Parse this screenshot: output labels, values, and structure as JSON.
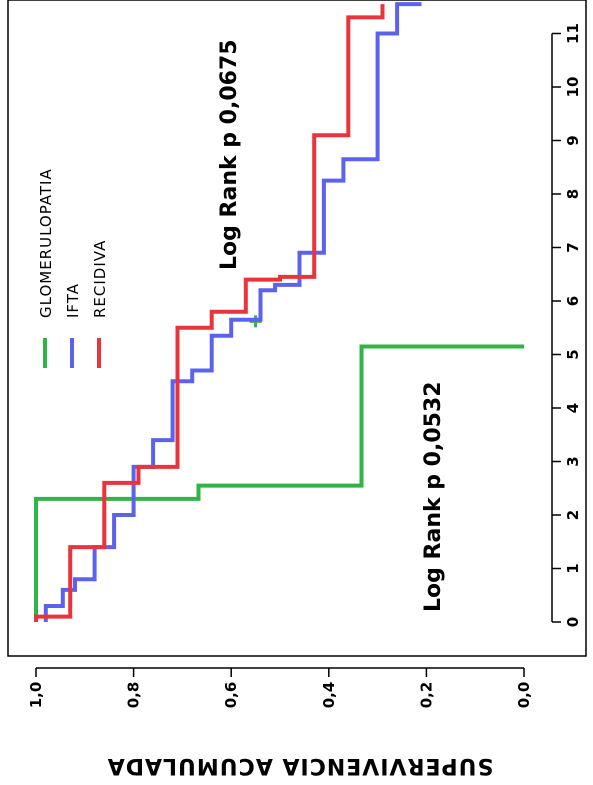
{
  "chart_data": {
    "type": "line",
    "step": true,
    "orientation": "rotated-90",
    "ylabel": "SUPERVIVENCIA ACUMULADA",
    "xlabel": "",
    "xlim": [
      -0.5,
      11.5
    ],
    "ylim": [
      -0.05,
      1.05
    ],
    "x_ticks": [
      "0",
      "1",
      "2",
      "3",
      "4",
      "5",
      "6",
      "7",
      "8",
      "9",
      "10",
      "11"
    ],
    "y_ticks": [
      "0,0",
      "0,2",
      "0,4",
      "0,6",
      "0,8",
      "1,0"
    ],
    "legend_placement": "top-left",
    "series": [
      {
        "name": "GLOMERULOPATIA",
        "color": "#2fb545",
        "points": [
          [
            0,
            1.0
          ],
          [
            2.3,
            1.0
          ],
          [
            2.3,
            0.667
          ],
          [
            2.55,
            0.667
          ],
          [
            2.55,
            0.333
          ],
          [
            5.15,
            0.333
          ],
          [
            5.15,
            0.0
          ]
        ],
        "censored": [
          [
            5.62,
            0.55
          ]
        ]
      },
      {
        "name": "IFTA",
        "color": "#5b63ee",
        "points": [
          [
            0,
            0.98
          ],
          [
            0.3,
            0.98
          ],
          [
            0.3,
            0.945
          ],
          [
            0.6,
            0.945
          ],
          [
            0.6,
            0.92
          ],
          [
            0.8,
            0.92
          ],
          [
            0.8,
            0.88
          ],
          [
            1.4,
            0.88
          ],
          [
            1.4,
            0.84
          ],
          [
            2.0,
            0.84
          ],
          [
            2.0,
            0.8
          ],
          [
            2.9,
            0.8
          ],
          [
            2.9,
            0.76
          ],
          [
            3.4,
            0.76
          ],
          [
            3.4,
            0.72
          ],
          [
            4.5,
            0.72
          ],
          [
            4.5,
            0.68
          ],
          [
            4.7,
            0.68
          ],
          [
            4.7,
            0.64
          ],
          [
            5.35,
            0.64
          ],
          [
            5.35,
            0.6
          ],
          [
            5.65,
            0.6
          ],
          [
            5.65,
            0.54
          ],
          [
            6.2,
            0.54
          ],
          [
            6.2,
            0.51
          ],
          [
            6.3,
            0.51
          ],
          [
            6.3,
            0.46
          ],
          [
            6.9,
            0.46
          ],
          [
            6.9,
            0.41
          ],
          [
            8.25,
            0.41
          ],
          [
            8.25,
            0.37
          ],
          [
            8.65,
            0.37
          ],
          [
            8.65,
            0.3
          ],
          [
            11.0,
            0.3
          ],
          [
            11.0,
            0.26
          ],
          [
            11.55,
            0.26
          ],
          [
            11.55,
            0.21
          ]
        ]
      },
      {
        "name": "RECIDIVA",
        "color": "#e8343a",
        "points": [
          [
            0,
            1.0
          ],
          [
            0.1,
            1.0
          ],
          [
            0.1,
            0.93
          ],
          [
            1.4,
            0.93
          ],
          [
            1.4,
            0.86
          ],
          [
            2.6,
            0.86
          ],
          [
            2.6,
            0.79
          ],
          [
            2.9,
            0.79
          ],
          [
            2.9,
            0.71
          ],
          [
            5.5,
            0.71
          ],
          [
            5.5,
            0.64
          ],
          [
            5.8,
            0.64
          ],
          [
            5.8,
            0.57
          ],
          [
            6.4,
            0.57
          ],
          [
            6.4,
            0.5
          ],
          [
            6.45,
            0.5
          ],
          [
            6.45,
            0.43
          ],
          [
            9.1,
            0.43
          ],
          [
            9.1,
            0.36
          ],
          [
            11.3,
            0.36
          ],
          [
            11.3,
            0.29
          ],
          [
            11.55,
            0.29
          ]
        ]
      }
    ],
    "annotations": [
      {
        "text": "Log Rank p 0,0675",
        "x": 8.3,
        "y": 0.72
      },
      {
        "text": "Log Rank p 0,0532",
        "x": 2.8,
        "y": 0.18
      }
    ]
  }
}
